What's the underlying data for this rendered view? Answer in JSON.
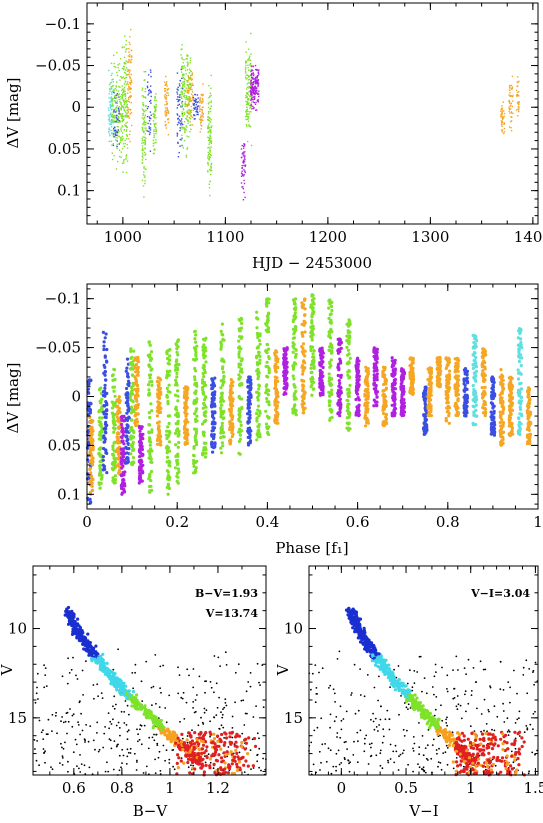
{
  "chart_data": [
    {
      "id": "lightcurve",
      "type": "scatter",
      "xlabel": "HJD − 2453000",
      "ylabel": "ΔV [mag]",
      "xlim": [
        965,
        1405
      ],
      "ylim": [
        0.14,
        -0.125
      ],
      "y_inverted": true,
      "xticks": [
        1000,
        1100,
        1200,
        1300,
        1400
      ],
      "yticks": [
        -0.1,
        -0.05,
        0,
        0.05,
        0.1
      ],
      "xtick_labels": [
        "1000",
        "1100",
        "1200",
        "1300",
        "1400"
      ],
      "ytick_labels": [
        "−0.1",
        "−0.05",
        "0",
        "0.05",
        "0.1"
      ],
      "series_colors": {
        "cyan": "#5fe0e0",
        "green": "#7fe22a",
        "orange": "#f5a623",
        "blue": "#3a4fe0",
        "purple": "#b020e0"
      },
      "segments": [
        {
          "x0": 985,
          "x1": 990,
          "ymin": -0.06,
          "ymax": 0.06,
          "color": "cyan",
          "n": 70
        },
        {
          "x0": 988,
          "x1": 998,
          "ymin": -0.08,
          "ymax": 0.09,
          "color": "green",
          "n": 160
        },
        {
          "x0": 990,
          "x1": 996,
          "ymin": -0.04,
          "ymax": 0.07,
          "color": "blue",
          "n": 40
        },
        {
          "x0": 998,
          "x1": 1004,
          "ymin": -0.1,
          "ymax": 0.1,
          "color": "green",
          "n": 150
        },
        {
          "x0": 1004,
          "x1": 1008,
          "ymin": -0.12,
          "ymax": 0.06,
          "color": "orange",
          "n": 80
        },
        {
          "x0": 1018,
          "x1": 1022,
          "ymin": -0.07,
          "ymax": 0.12,
          "color": "green",
          "n": 100
        },
        {
          "x0": 1023,
          "x1": 1027,
          "ymin": -0.08,
          "ymax": 0.07,
          "color": "blue",
          "n": 40
        },
        {
          "x0": 1029,
          "x1": 1032,
          "ymin": -0.05,
          "ymax": 0.07,
          "color": "green",
          "n": 60
        },
        {
          "x0": 1040,
          "x1": 1044,
          "ymin": -0.06,
          "ymax": 0.05,
          "color": "orange",
          "n": 60
        },
        {
          "x0": 1052,
          "x1": 1058,
          "ymin": -0.07,
          "ymax": 0.08,
          "color": "blue",
          "n": 60
        },
        {
          "x0": 1056,
          "x1": 1066,
          "ymin": -0.1,
          "ymax": 0.07,
          "color": "green",
          "n": 200
        },
        {
          "x0": 1062,
          "x1": 1068,
          "ymin": -0.06,
          "ymax": 0.04,
          "color": "orange",
          "n": 60
        },
        {
          "x0": 1068,
          "x1": 1073,
          "ymin": -0.03,
          "ymax": 0.03,
          "color": "blue",
          "n": 40
        },
        {
          "x0": 1074,
          "x1": 1078,
          "ymin": -0.04,
          "ymax": 0.04,
          "color": "orange",
          "n": 50
        },
        {
          "x0": 1082,
          "x1": 1086,
          "ymin": -0.06,
          "ymax": 0.13,
          "color": "green",
          "n": 110
        },
        {
          "x0": 1115,
          "x1": 1119,
          "ymin": 0.02,
          "ymax": 0.12,
          "color": "purple",
          "n": 50
        },
        {
          "x0": 1119,
          "x1": 1125,
          "ymin": -0.1,
          "ymax": 0.06,
          "color": "green",
          "n": 140
        },
        {
          "x0": 1124,
          "x1": 1132,
          "ymin": -0.06,
          "ymax": 0.01,
          "color": "purple",
          "n": 160
        },
        {
          "x0": 1368,
          "x1": 1372,
          "ymin": -0.01,
          "ymax": 0.04,
          "color": "orange",
          "n": 40
        },
        {
          "x0": 1376,
          "x1": 1380,
          "ymin": -0.05,
          "ymax": 0.04,
          "color": "orange",
          "n": 45
        },
        {
          "x0": 1383,
          "x1": 1386,
          "ymin": -0.05,
          "ymax": 0.03,
          "color": "orange",
          "n": 30
        }
      ]
    },
    {
      "id": "phased",
      "type": "scatter",
      "xlabel": "Phase [f₁]",
      "ylabel": "ΔV [mag]",
      "xlim": [
        0,
        1
      ],
      "ylim": [
        0.115,
        -0.115
      ],
      "y_inverted": true,
      "xticks": [
        0,
        0.2,
        0.4,
        0.6,
        0.8,
        1
      ],
      "yticks": [
        -0.1,
        -0.05,
        0,
        0.05,
        0.1
      ],
      "xtick_labels": [
        "0",
        "0.2",
        "0.4",
        "0.6",
        "0.8",
        "1"
      ],
      "ytick_labels": [
        "−0.1",
        "−0.05",
        "0",
        "0.05",
        "0.1"
      ],
      "series_colors": {
        "cyan": "#5fe0e0",
        "green": "#7fe22a",
        "orange": "#f5a623",
        "blue": "#3a4fe0",
        "purple": "#b020e0"
      },
      "columns": [
        {
          "x": 0.005,
          "ymin": -0.02,
          "ymax": 0.11,
          "color": "blue"
        },
        {
          "x": 0.01,
          "ymin": 0.02,
          "ymax": 0.1,
          "color": "orange"
        },
        {
          "x": 0.03,
          "ymin": -0.01,
          "ymax": 0.1,
          "color": "green"
        },
        {
          "x": 0.04,
          "ymin": -0.07,
          "ymax": 0.08,
          "color": "blue"
        },
        {
          "x": 0.06,
          "ymin": -0.03,
          "ymax": 0.09,
          "color": "green"
        },
        {
          "x": 0.07,
          "ymin": 0.0,
          "ymax": 0.08,
          "color": "orange"
        },
        {
          "x": 0.08,
          "ymin": 0.02,
          "ymax": 0.1,
          "color": "purple"
        },
        {
          "x": 0.09,
          "ymin": -0.04,
          "ymax": 0.07,
          "color": "blue"
        },
        {
          "x": 0.1,
          "ymin": -0.05,
          "ymax": 0.07,
          "color": "green"
        },
        {
          "x": 0.11,
          "ymin": -0.04,
          "ymax": 0.03,
          "color": "orange"
        },
        {
          "x": 0.12,
          "ymin": 0.03,
          "ymax": 0.09,
          "color": "purple"
        },
        {
          "x": 0.14,
          "ymin": -0.06,
          "ymax": 0.1,
          "color": "green"
        },
        {
          "x": 0.16,
          "ymin": -0.02,
          "ymax": 0.05,
          "color": "orange"
        },
        {
          "x": 0.18,
          "ymin": -0.05,
          "ymax": 0.1,
          "color": "green"
        },
        {
          "x": 0.2,
          "ymin": -0.06,
          "ymax": 0.09,
          "color": "green"
        },
        {
          "x": 0.22,
          "ymin": -0.01,
          "ymax": 0.05,
          "color": "orange"
        },
        {
          "x": 0.24,
          "ymin": -0.07,
          "ymax": 0.08,
          "color": "green"
        },
        {
          "x": 0.26,
          "ymin": -0.06,
          "ymax": 0.07,
          "color": "green"
        },
        {
          "x": 0.28,
          "ymin": -0.02,
          "ymax": 0.06,
          "color": "blue"
        },
        {
          "x": 0.3,
          "ymin": -0.08,
          "ymax": 0.06,
          "color": "green"
        },
        {
          "x": 0.32,
          "ymin": -0.02,
          "ymax": 0.05,
          "color": "orange"
        },
        {
          "x": 0.34,
          "ymin": -0.08,
          "ymax": 0.06,
          "color": "green"
        },
        {
          "x": 0.36,
          "ymin": -0.02,
          "ymax": 0.05,
          "color": "blue"
        },
        {
          "x": 0.38,
          "ymin": -0.09,
          "ymax": 0.05,
          "color": "green"
        },
        {
          "x": 0.4,
          "ymin": -0.1,
          "ymax": 0.04,
          "color": "green"
        },
        {
          "x": 0.42,
          "ymin": -0.05,
          "ymax": 0.03,
          "color": "orange"
        },
        {
          "x": 0.44,
          "ymin": -0.05,
          "ymax": 0.0,
          "color": "purple"
        },
        {
          "x": 0.46,
          "ymin": -0.1,
          "ymax": 0.02,
          "color": "green"
        },
        {
          "x": 0.48,
          "ymin": -0.1,
          "ymax": 0.02,
          "color": "orange"
        },
        {
          "x": 0.5,
          "ymin": -0.11,
          "ymax": 0.0,
          "color": "green"
        },
        {
          "x": 0.52,
          "ymin": -0.05,
          "ymax": 0.0,
          "color": "purple"
        },
        {
          "x": 0.54,
          "ymin": -0.1,
          "ymax": 0.03,
          "color": "green"
        },
        {
          "x": 0.56,
          "ymin": -0.06,
          "ymax": 0.02,
          "color": "purple"
        },
        {
          "x": 0.58,
          "ymin": -0.08,
          "ymax": 0.04,
          "color": "green"
        },
        {
          "x": 0.6,
          "ymin": -0.04,
          "ymax": 0.02,
          "color": "purple"
        },
        {
          "x": 0.62,
          "ymin": -0.03,
          "ymax": 0.03,
          "color": "orange"
        },
        {
          "x": 0.64,
          "ymin": -0.05,
          "ymax": 0.01,
          "color": "purple"
        },
        {
          "x": 0.66,
          "ymin": -0.03,
          "ymax": 0.03,
          "color": "orange"
        },
        {
          "x": 0.68,
          "ymin": -0.04,
          "ymax": 0.02,
          "color": "purple"
        },
        {
          "x": 0.7,
          "ymin": -0.03,
          "ymax": 0.02,
          "color": "purple"
        },
        {
          "x": 0.72,
          "ymin": -0.04,
          "ymax": 0.0,
          "color": "orange"
        },
        {
          "x": 0.75,
          "ymin": -0.01,
          "ymax": 0.04,
          "color": "blue"
        },
        {
          "x": 0.76,
          "ymin": -0.03,
          "ymax": 0.02,
          "color": "orange"
        },
        {
          "x": 0.78,
          "ymin": -0.04,
          "ymax": -0.01,
          "color": "orange"
        },
        {
          "x": 0.8,
          "ymin": -0.04,
          "ymax": 0.03,
          "color": "orange"
        },
        {
          "x": 0.82,
          "ymin": -0.04,
          "ymax": 0.02,
          "color": "orange"
        },
        {
          "x": 0.84,
          "ymin": -0.03,
          "ymax": 0.02,
          "color": "blue"
        },
        {
          "x": 0.86,
          "ymin": -0.07,
          "ymax": 0.03,
          "color": "cyan"
        },
        {
          "x": 0.88,
          "ymin": -0.05,
          "ymax": 0.02,
          "color": "orange"
        },
        {
          "x": 0.9,
          "ymin": -0.02,
          "ymax": 0.04,
          "color": "blue"
        },
        {
          "x": 0.92,
          "ymin": -0.03,
          "ymax": 0.05,
          "color": "orange"
        },
        {
          "x": 0.94,
          "ymin": -0.02,
          "ymax": 0.04,
          "color": "orange"
        },
        {
          "x": 0.96,
          "ymin": -0.07,
          "ymax": 0.04,
          "color": "cyan"
        },
        {
          "x": 0.98,
          "ymin": -0.01,
          "ymax": 0.05,
          "color": "orange"
        }
      ]
    },
    {
      "id": "cmd-bv",
      "type": "scatter",
      "xlabel": "B−V",
      "ylabel": "V",
      "xlim": [
        0.43,
        1.4
      ],
      "ylim": [
        18.2,
        6.5
      ],
      "y_inverted": true,
      "xticks": [
        0.6,
        0.8,
        1,
        1.2
      ],
      "yticks": [
        10,
        15
      ],
      "xtick_labels": [
        "0.6",
        "0.8",
        "1",
        "1.2"
      ],
      "ytick_labels": [
        "10",
        "15"
      ],
      "annotations": [
        "B−V=1.93",
        "V=13.74"
      ]
    },
    {
      "id": "cmd-vi",
      "type": "scatter",
      "xlabel": "V−I",
      "ylabel": "V",
      "xlim": [
        -0.25,
        1.52
      ],
      "ylim": [
        18.2,
        6.5
      ],
      "y_inverted": true,
      "xticks": [
        0,
        0.5,
        1,
        1.5
      ],
      "yticks": [
        10,
        15
      ],
      "xtick_labels": [
        "0",
        "0.5",
        "1",
        "1.5"
      ],
      "ytick_labels": [
        "10",
        "15"
      ],
      "annotations": [
        "V−I=3.04"
      ]
    }
  ],
  "cmd_colors": {
    "blue": "#1a2fd0",
    "cyan": "#40d8e8",
    "green": "#7fe22a",
    "orange": "#f5a020",
    "red": "#e02020",
    "black": "#000000"
  }
}
